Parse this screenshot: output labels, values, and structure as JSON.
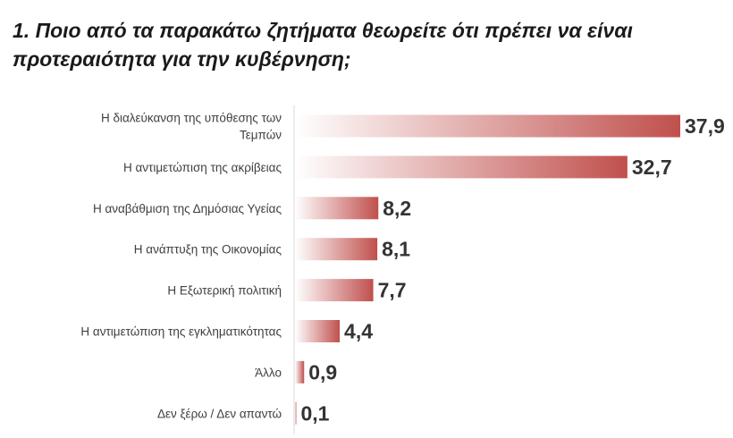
{
  "chart_data": {
    "type": "bar",
    "orientation": "horizontal",
    "title": "1. Ποιο από τα παρακάτω ζητήματα θεωρείτε ότι πρέπει να είναι προτεραιότητα για την κυβέρνηση;",
    "categories": [
      "Η διαλεύκανση της υπόθεσης  των Τεμπών",
      "Η αντιμετώπιση της ακρίβειας",
      "Η αναβάθμιση της Δημόσιας Υγείας",
      "Η ανάπτυξη της Οικονομίας",
      "Η Εξωτερική πολιτική",
      "Η αντιμετώπιση της εγκληματικότητας",
      "Άλλο",
      "Δεν ξέρω / Δεν απαντώ"
    ],
    "category_lines": [
      [
        "Η διαλεύκανση της υπόθεσης  των",
        "Τεμπών"
      ],
      [
        "Η αντιμετώπιση της ακρίβειας"
      ],
      [
        "Η αναβάθμιση της Δημόσιας Υγείας"
      ],
      [
        "Η ανάπτυξη της Οικονομίας"
      ],
      [
        "Η Εξωτερική πολιτική"
      ],
      [
        "Η αντιμετώπιση της εγκληματικότητας"
      ],
      [
        "Άλλο"
      ],
      [
        "Δεν ξέρω / Δεν απαντώ"
      ]
    ],
    "values": [
      37.9,
      32.7,
      8.2,
      8.1,
      7.7,
      4.4,
      0.9,
      0.1
    ],
    "value_labels": [
      "37,9",
      "32,7",
      "8,2",
      "8,1",
      "7,7",
      "4,4",
      "0,9",
      "0,1"
    ],
    "xlim": [
      0,
      40
    ],
    "grid": false,
    "legend": "none",
    "colors": {
      "bar_end": "#c0504d",
      "bar_start": "#ffffff",
      "label": "#404040",
      "value": "#333333",
      "axis": "#d9d9d9"
    }
  }
}
